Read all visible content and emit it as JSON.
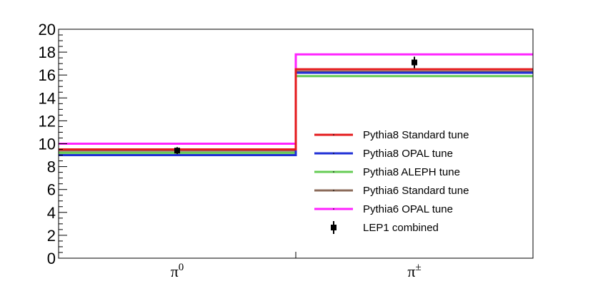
{
  "chart_data": {
    "type": "bar",
    "categories": [
      "π⁰",
      "π±"
    ],
    "category_labels": [
      {
        "base": "π",
        "sup": "0"
      },
      {
        "base": "π",
        "sup": "±"
      }
    ],
    "ylim": [
      0,
      20
    ],
    "yticks": [
      0,
      2,
      4,
      6,
      8,
      10,
      12,
      14,
      16,
      18,
      20
    ],
    "ytick_labels": [
      "0",
      "2",
      "4",
      "6",
      "8",
      "10",
      "12",
      "14",
      "16",
      "18",
      "20"
    ],
    "legend_position": "right",
    "series": [
      {
        "name": "Pythia8 Standard tune",
        "color": "#e41a1c",
        "style": "line",
        "values": [
          9.5,
          16.5
        ]
      },
      {
        "name": "Pythia8 OPAL tune",
        "color": "#1f2fd6",
        "style": "line",
        "values": [
          9.0,
          16.2
        ]
      },
      {
        "name": "Pythia8 ALEPH tune",
        "color": "#66cc55",
        "style": "line",
        "values": [
          9.2,
          15.9
        ]
      },
      {
        "name": "Pythia6 Standard tune",
        "color": "#8b6b5a",
        "style": "line",
        "values": [
          9.4,
          16.3
        ]
      },
      {
        "name": "Pythia6 OPAL tune",
        "color": "#ff22ff",
        "style": "line",
        "values": [
          10.0,
          17.8
        ]
      },
      {
        "name": "LEP1 combined",
        "color": "#000000",
        "style": "marker",
        "values": [
          9.4,
          17.1
        ],
        "errors": [
          0.3,
          0.5
        ]
      }
    ]
  }
}
